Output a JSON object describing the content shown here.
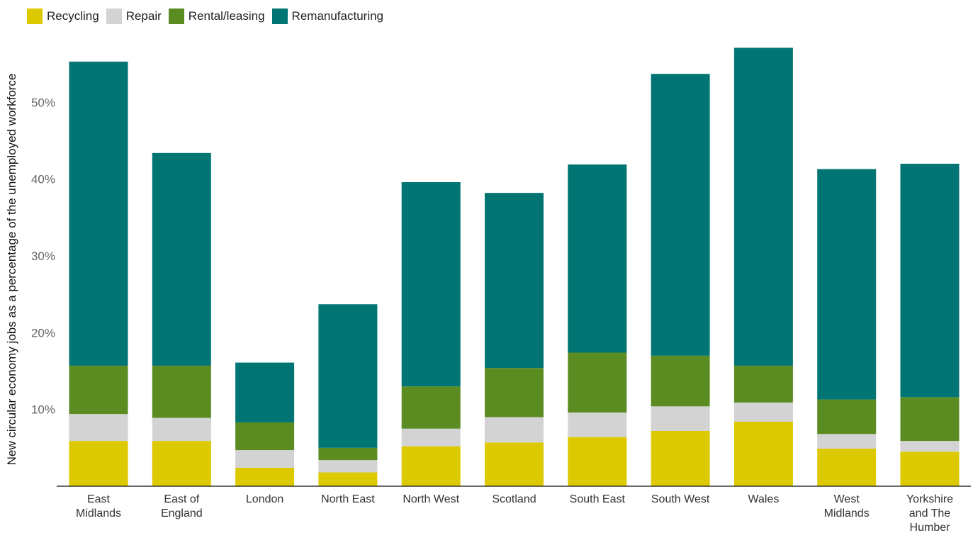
{
  "chart_data": {
    "type": "bar",
    "stacked": true,
    "ylabel": "New circular economy jobs as a percentage of the unemployed workforce",
    "ylim": [
      0,
      60
    ],
    "yticks": [
      "10%",
      "20%",
      "30%",
      "40%",
      "50%"
    ],
    "ytick_values": [
      10,
      20,
      30,
      40,
      50
    ],
    "grid": false,
    "legend_position": "top-left",
    "categories": [
      [
        "East",
        "Midlands"
      ],
      [
        "East of",
        "England"
      ],
      [
        "London"
      ],
      [
        "North East"
      ],
      [
        "North West"
      ],
      [
        "Scotland"
      ],
      [
        "South East"
      ],
      [
        "South West"
      ],
      [
        "Wales"
      ],
      [
        "West",
        "Midlands"
      ],
      [
        "Yorkshire",
        "and The",
        "Humber"
      ]
    ],
    "series": [
      {
        "name": "Recycling",
        "color": "#dcc900",
        "values": [
          5.9,
          5.9,
          2.4,
          1.8,
          5.2,
          5.7,
          6.4,
          7.2,
          8.4,
          4.9,
          4.5
        ]
      },
      {
        "name": "Repair",
        "color": "#d3d3d3",
        "values": [
          3.5,
          3.0,
          2.3,
          1.6,
          2.3,
          3.3,
          3.2,
          3.2,
          2.5,
          1.9,
          1.4
        ]
      },
      {
        "name": "Rental/leasing",
        "color": "#5b8c22",
        "values": [
          6.3,
          6.8,
          3.6,
          1.6,
          5.5,
          6.4,
          7.8,
          6.6,
          4.8,
          4.5,
          5.7
        ]
      },
      {
        "name": "Remanufacturing",
        "color": "#007574",
        "values": [
          39.6,
          27.7,
          7.8,
          18.7,
          26.6,
          22.8,
          24.5,
          36.7,
          41.4,
          30.0,
          30.4
        ]
      }
    ]
  }
}
